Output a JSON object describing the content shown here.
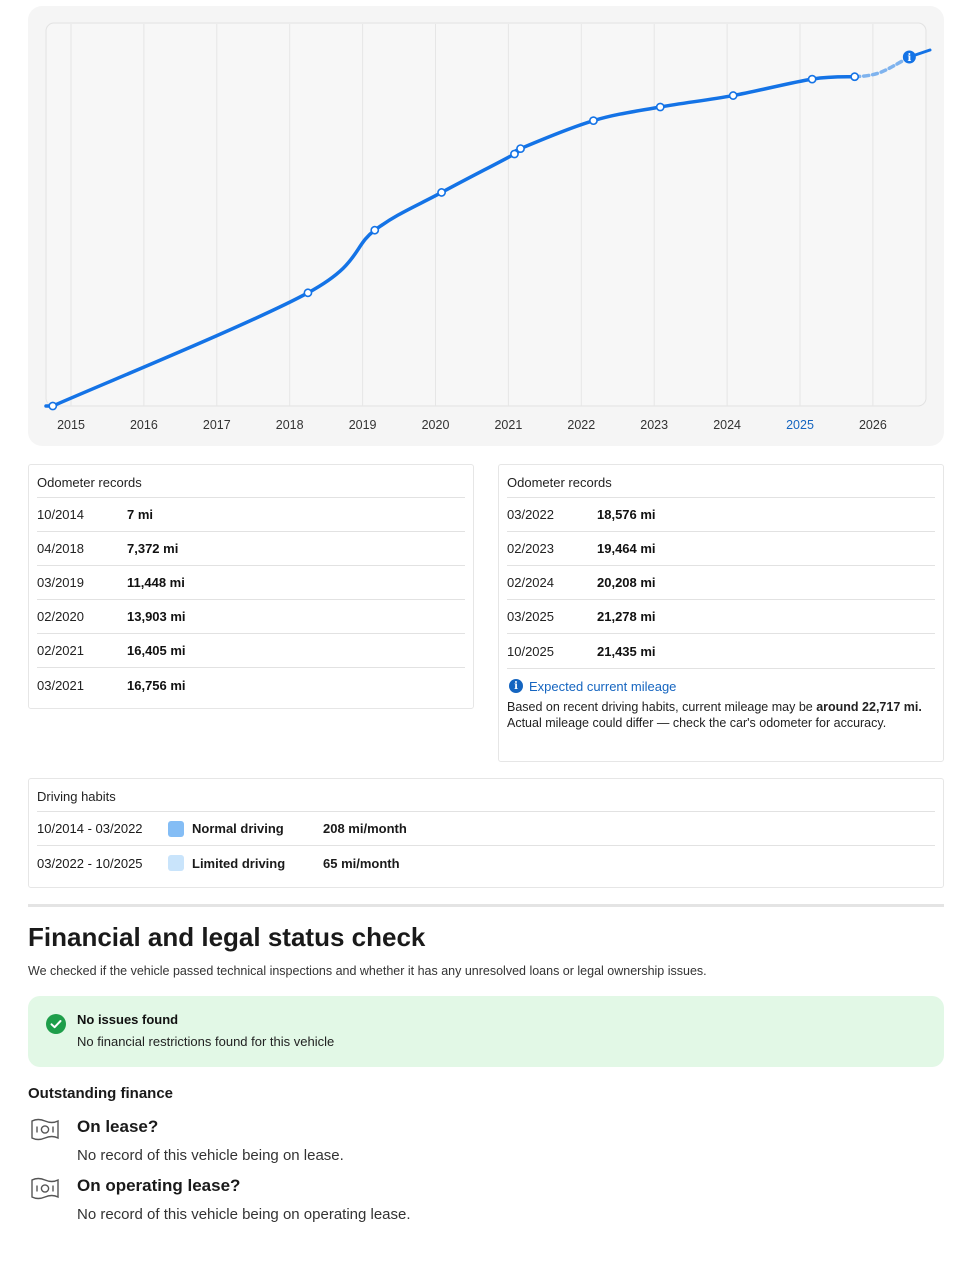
{
  "chart": {
    "years": [
      "2015",
      "2016",
      "2017",
      "2018",
      "2019",
      "2020",
      "2021",
      "2022",
      "2023",
      "2024",
      "2025",
      "2026"
    ],
    "highlight_year": "2025",
    "colors": {
      "line": "#1473e6",
      "projected": "#7fb3ee",
      "highlight_year": "#1565c0",
      "axis_text": "#333333",
      "grid": "#e6e6e6",
      "plot_bg": "#f7f7f7"
    },
    "info_icon": "info-icon"
  },
  "chart_data": {
    "type": "line",
    "title": "",
    "xlabel": "",
    "ylabel": "",
    "x_ticks": [
      "2015",
      "2016",
      "2017",
      "2018",
      "2019",
      "2020",
      "2021",
      "2022",
      "2023",
      "2024",
      "2025",
      "2026"
    ],
    "y_axis_shown": false,
    "grid": "vertical",
    "series": [
      {
        "points": [
          {
            "x": "2014-10",
            "y": 7
          },
          {
            "x": "2018-04",
            "y": 7372
          },
          {
            "x": "2019-03",
            "y": 11448
          },
          {
            "x": "2020-02",
            "y": 13903
          },
          {
            "x": "2021-02",
            "y": 16405
          },
          {
            "x": "2021-03",
            "y": 16756
          },
          {
            "x": "2022-03",
            "y": 18576
          },
          {
            "x": "2023-02",
            "y": 19464
          },
          {
            "x": "2024-02",
            "y": 20208
          },
          {
            "x": "2025-03",
            "y": 21278
          },
          {
            "x": "2025-10",
            "y": 21435
          }
        ]
      },
      {
        "style": "dashed",
        "points": [
          {
            "x": "2025-10",
            "y": 21435
          },
          {
            "x": "2026-07",
            "y": 22717
          }
        ]
      }
    ]
  },
  "records_left": {
    "title": "Odometer records",
    "rows": [
      {
        "date": "10/2014",
        "value": "7 mi"
      },
      {
        "date": "04/2018",
        "value": "7,372 mi"
      },
      {
        "date": "03/2019",
        "value": "11,448 mi"
      },
      {
        "date": "02/2020",
        "value": "13,903 mi"
      },
      {
        "date": "02/2021",
        "value": "16,405 mi"
      },
      {
        "date": "03/2021",
        "value": "16,756 mi"
      }
    ]
  },
  "records_right": {
    "title": "Odometer records",
    "rows": [
      {
        "date": "03/2022",
        "value": "18,576 mi"
      },
      {
        "date": "02/2023",
        "value": "19,464 mi"
      },
      {
        "date": "02/2024",
        "value": "20,208 mi"
      },
      {
        "date": "03/2025",
        "value": "21,278 mi"
      },
      {
        "date": "10/2025",
        "value": "21,435 mi"
      }
    ],
    "expected": {
      "title": "Expected current mileage",
      "text_before": "Based on recent driving habits, current mileage may be ",
      "text_bold": "around 22,717 mi.",
      "text_after": " Actual mileage could differ — check the car's odometer for accuracy."
    }
  },
  "habits": {
    "title": "Driving habits",
    "rows": [
      {
        "period": "10/2014 - 03/2022",
        "label": "Normal driving",
        "rate": "208 mi/month",
        "color": "#84bdf5"
      },
      {
        "period": "03/2022 - 10/2025",
        "label": "Limited driving",
        "rate": "65 mi/month",
        "color": "#c9e4fb"
      }
    ]
  },
  "financial": {
    "title": "Financial and legal status check",
    "subtitle": "We checked if the vehicle passed technical inspections and whether it has any unresolved loans or legal ownership issues.",
    "status": {
      "icon": "check-circle-icon",
      "title": "No issues found",
      "text": "No financial restrictions found for this vehicle",
      "color": "#1e9e4a",
      "bg": "#e2f8e6"
    },
    "outstanding_title": "Outstanding finance",
    "items": [
      {
        "icon": "banknote-icon",
        "question": "On lease?",
        "answer": "No record of this vehicle being on lease."
      },
      {
        "icon": "banknote-icon",
        "question": "On operating lease?",
        "answer": "No record of this vehicle being on operating lease."
      }
    ]
  }
}
